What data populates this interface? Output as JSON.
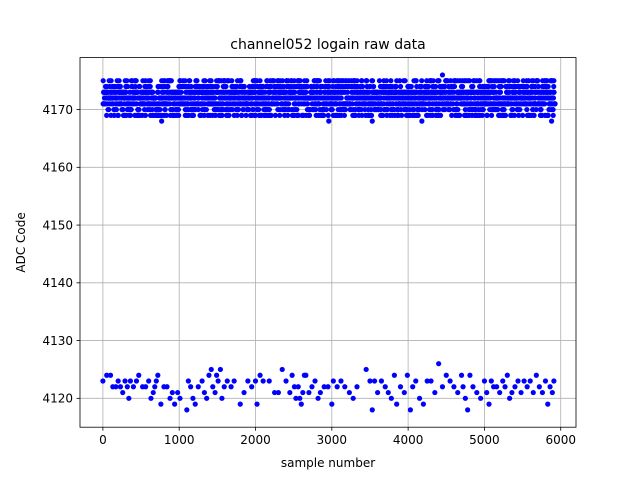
{
  "chart_data": {
    "type": "scatter",
    "title": "channel052 logain raw data",
    "xlabel": "sample number",
    "ylabel": "ADC Code",
    "xlim": [
      -300,
      6200
    ],
    "ylim": [
      4115,
      4179
    ],
    "xticks": [
      0,
      1000,
      2000,
      3000,
      4000,
      5000,
      6000
    ],
    "yticks": [
      4120,
      4130,
      4140,
      4150,
      4160,
      4170
    ],
    "grid": true,
    "marker_color": "#0000ff",
    "series": [
      {
        "cluster": "main",
        "x_range": [
          0,
          5920
        ],
        "y_range": [
          4168,
          4176
        ],
        "outliers": [
          {
            "x": 4450,
            "y": 4176
          },
          {
            "x": 770,
            "y": 4168
          },
          {
            "x": 2960,
            "y": 4168
          },
          {
            "x": 3530,
            "y": 4168
          },
          {
            "x": 4180,
            "y": 4168
          },
          {
            "x": 5880,
            "y": 4168
          }
        ]
      },
      {
        "cluster": "low",
        "points": [
          {
            "x": 0,
            "y": 4123
          },
          {
            "x": 50,
            "y": 4124
          },
          {
            "x": 100,
            "y": 4124
          },
          {
            "x": 130,
            "y": 4122
          },
          {
            "x": 170,
            "y": 4122
          },
          {
            "x": 200,
            "y": 4123
          },
          {
            "x": 230,
            "y": 4122
          },
          {
            "x": 260,
            "y": 4121
          },
          {
            "x": 290,
            "y": 4123
          },
          {
            "x": 320,
            "y": 4122
          },
          {
            "x": 340,
            "y": 4120
          },
          {
            "x": 360,
            "y": 4123
          },
          {
            "x": 400,
            "y": 4122
          },
          {
            "x": 440,
            "y": 4123
          },
          {
            "x": 470,
            "y": 4124
          },
          {
            "x": 520,
            "y": 4122
          },
          {
            "x": 560,
            "y": 4122
          },
          {
            "x": 600,
            "y": 4123
          },
          {
            "x": 630,
            "y": 4120
          },
          {
            "x": 660,
            "y": 4121
          },
          {
            "x": 680,
            "y": 4122
          },
          {
            "x": 700,
            "y": 4123
          },
          {
            "x": 720,
            "y": 4124
          },
          {
            "x": 760,
            "y": 4119
          },
          {
            "x": 800,
            "y": 4122
          },
          {
            "x": 840,
            "y": 4122
          },
          {
            "x": 880,
            "y": 4120
          },
          {
            "x": 910,
            "y": 4121
          },
          {
            "x": 940,
            "y": 4119
          },
          {
            "x": 980,
            "y": 4121
          },
          {
            "x": 1010,
            "y": 4120
          },
          {
            "x": 1100,
            "y": 4118
          },
          {
            "x": 1120,
            "y": 4123
          },
          {
            "x": 1150,
            "y": 4122
          },
          {
            "x": 1180,
            "y": 4120
          },
          {
            "x": 1210,
            "y": 4119
          },
          {
            "x": 1250,
            "y": 4122
          },
          {
            "x": 1300,
            "y": 4123
          },
          {
            "x": 1330,
            "y": 4121
          },
          {
            "x": 1360,
            "y": 4120
          },
          {
            "x": 1390,
            "y": 4124
          },
          {
            "x": 1420,
            "y": 4125
          },
          {
            "x": 1440,
            "y": 4122
          },
          {
            "x": 1470,
            "y": 4121
          },
          {
            "x": 1490,
            "y": 4124
          },
          {
            "x": 1510,
            "y": 4123
          },
          {
            "x": 1540,
            "y": 4125
          },
          {
            "x": 1560,
            "y": 4120
          },
          {
            "x": 1590,
            "y": 4122
          },
          {
            "x": 1630,
            "y": 4123
          },
          {
            "x": 1680,
            "y": 4122
          },
          {
            "x": 1720,
            "y": 4123
          },
          {
            "x": 1800,
            "y": 4119
          },
          {
            "x": 1850,
            "y": 4121
          },
          {
            "x": 1900,
            "y": 4123
          },
          {
            "x": 1950,
            "y": 4122
          },
          {
            "x": 2000,
            "y": 4123
          },
          {
            "x": 2020,
            "y": 4119
          },
          {
            "x": 2060,
            "y": 4124
          },
          {
            "x": 2100,
            "y": 4123
          },
          {
            "x": 2180,
            "y": 4123
          },
          {
            "x": 2250,
            "y": 4121
          },
          {
            "x": 2300,
            "y": 4121
          },
          {
            "x": 2350,
            "y": 4125
          },
          {
            "x": 2400,
            "y": 4123
          },
          {
            "x": 2450,
            "y": 4121
          },
          {
            "x": 2480,
            "y": 4124
          },
          {
            "x": 2510,
            "y": 4122
          },
          {
            "x": 2530,
            "y": 4120
          },
          {
            "x": 2560,
            "y": 4122
          },
          {
            "x": 2580,
            "y": 4120
          },
          {
            "x": 2600,
            "y": 4119
          },
          {
            "x": 2620,
            "y": 4121
          },
          {
            "x": 2640,
            "y": 4124
          },
          {
            "x": 2660,
            "y": 4124
          },
          {
            "x": 2700,
            "y": 4121
          },
          {
            "x": 2740,
            "y": 4122
          },
          {
            "x": 2780,
            "y": 4123
          },
          {
            "x": 2820,
            "y": 4120
          },
          {
            "x": 2850,
            "y": 4121
          },
          {
            "x": 2900,
            "y": 4122
          },
          {
            "x": 2950,
            "y": 4122
          },
          {
            "x": 3000,
            "y": 4119
          },
          {
            "x": 3020,
            "y": 4123
          },
          {
            "x": 3070,
            "y": 4122
          },
          {
            "x": 3120,
            "y": 4123
          },
          {
            "x": 3170,
            "y": 4122
          },
          {
            "x": 3230,
            "y": 4121
          },
          {
            "x": 3280,
            "y": 4120
          },
          {
            "x": 3330,
            "y": 4122
          },
          {
            "x": 3450,
            "y": 4125
          },
          {
            "x": 3500,
            "y": 4123
          },
          {
            "x": 3530,
            "y": 4118
          },
          {
            "x": 3560,
            "y": 4123
          },
          {
            "x": 3600,
            "y": 4121
          },
          {
            "x": 3650,
            "y": 4123
          },
          {
            "x": 3700,
            "y": 4122
          },
          {
            "x": 3740,
            "y": 4121
          },
          {
            "x": 3780,
            "y": 4120
          },
          {
            "x": 3820,
            "y": 4124
          },
          {
            "x": 3850,
            "y": 4119
          },
          {
            "x": 3900,
            "y": 4122
          },
          {
            "x": 3950,
            "y": 4121
          },
          {
            "x": 3990,
            "y": 4124
          },
          {
            "x": 4030,
            "y": 4118
          },
          {
            "x": 4060,
            "y": 4122
          },
          {
            "x": 4100,
            "y": 4123
          },
          {
            "x": 4150,
            "y": 4120
          },
          {
            "x": 4200,
            "y": 4119
          },
          {
            "x": 4250,
            "y": 4123
          },
          {
            "x": 4300,
            "y": 4123
          },
          {
            "x": 4350,
            "y": 4121
          },
          {
            "x": 4400,
            "y": 4126
          },
          {
            "x": 4450,
            "y": 4122
          },
          {
            "x": 4500,
            "y": 4124
          },
          {
            "x": 4550,
            "y": 4123
          },
          {
            "x": 4600,
            "y": 4122
          },
          {
            "x": 4650,
            "y": 4121
          },
          {
            "x": 4700,
            "y": 4124
          },
          {
            "x": 4720,
            "y": 4122
          },
          {
            "x": 4750,
            "y": 4120
          },
          {
            "x": 4780,
            "y": 4118
          },
          {
            "x": 4810,
            "y": 4124
          },
          {
            "x": 4850,
            "y": 4122
          },
          {
            "x": 4900,
            "y": 4121
          },
          {
            "x": 4950,
            "y": 4120
          },
          {
            "x": 5000,
            "y": 4123
          },
          {
            "x": 5030,
            "y": 4121
          },
          {
            "x": 5060,
            "y": 4119
          },
          {
            "x": 5090,
            "y": 4123
          },
          {
            "x": 5120,
            "y": 4122
          },
          {
            "x": 5160,
            "y": 4122
          },
          {
            "x": 5200,
            "y": 4121
          },
          {
            "x": 5240,
            "y": 4123
          },
          {
            "x": 5270,
            "y": 4122
          },
          {
            "x": 5300,
            "y": 4124
          },
          {
            "x": 5330,
            "y": 4120
          },
          {
            "x": 5360,
            "y": 4121
          },
          {
            "x": 5400,
            "y": 4122
          },
          {
            "x": 5440,
            "y": 4123
          },
          {
            "x": 5480,
            "y": 4121
          },
          {
            "x": 5520,
            "y": 4123
          },
          {
            "x": 5560,
            "y": 4122
          },
          {
            "x": 5600,
            "y": 4123
          },
          {
            "x": 5640,
            "y": 4121
          },
          {
            "x": 5680,
            "y": 4124
          },
          {
            "x": 5720,
            "y": 4122
          },
          {
            "x": 5760,
            "y": 4121
          },
          {
            "x": 5800,
            "y": 4123
          },
          {
            "x": 5830,
            "y": 4119
          },
          {
            "x": 5860,
            "y": 4122
          },
          {
            "x": 5890,
            "y": 4121
          },
          {
            "x": 5910,
            "y": 4123
          }
        ]
      }
    ]
  }
}
